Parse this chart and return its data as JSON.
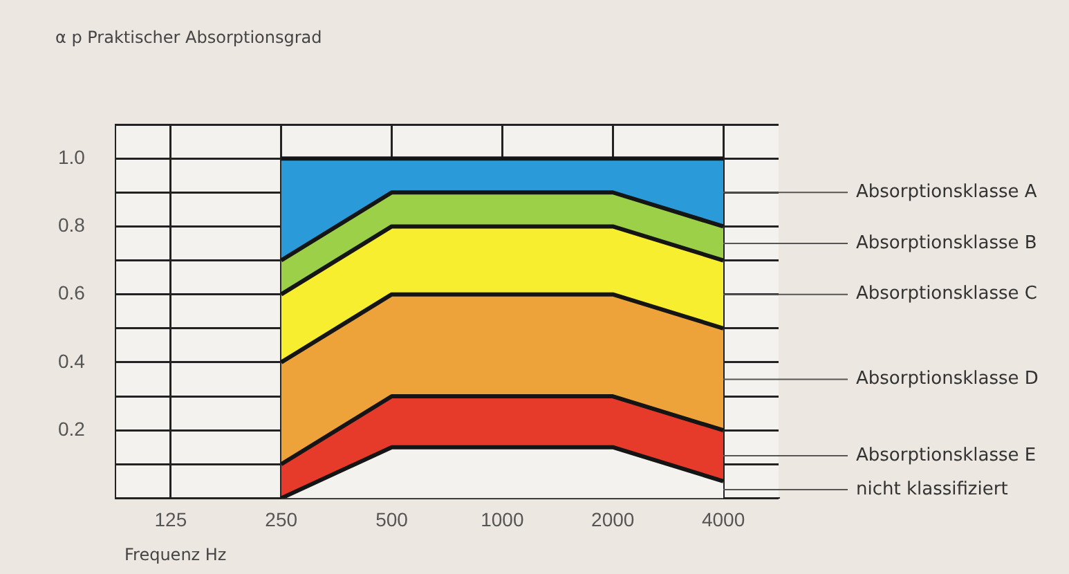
{
  "chart_data": {
    "type": "area",
    "stacked": true,
    "ylabel": "α p Praktischer Absorptionsgrad",
    "xlabel": "Frequenz Hz",
    "categories": [
      "125",
      "250",
      "500",
      "1000",
      "2000",
      "4000"
    ],
    "ylim": [
      0,
      1.1
    ],
    "yticks": [
      {
        "value": 0,
        "label": null
      },
      {
        "value": 0.1,
        "label": null
      },
      {
        "value": 0.2,
        "label": "0.2"
      },
      {
        "value": 0.3,
        "label": null
      },
      {
        "value": 0.4,
        "label": "0.4"
      },
      {
        "value": 0.5,
        "label": null
      },
      {
        "value": 0.6,
        "label": "0.6"
      },
      {
        "value": 0.7,
        "label": null
      },
      {
        "value": 0.8,
        "label": "0.8"
      },
      {
        "value": 0.9,
        "label": null
      },
      {
        "value": 1.0,
        "label": "1.0"
      },
      {
        "value": 1.1,
        "label": null
      }
    ],
    "grid": true,
    "legend": false,
    "series": [
      {
        "name": "nicht klassifiziert",
        "color": "#f4f2ee",
        "values": [
          null,
          0,
          0.15,
          0.15,
          0.15,
          0.05
        ]
      },
      {
        "name": "Absorptionsklasse E",
        "color": "#e63a2a",
        "values": [
          null,
          0.1,
          0.15,
          0.15,
          0.15,
          0.15
        ]
      },
      {
        "name": "Absorptionsklasse D",
        "color": "#eea23a",
        "values": [
          null,
          0.3,
          0.3,
          0.3,
          0.3,
          0.3
        ]
      },
      {
        "name": "Absorptionsklasse C",
        "color": "#f6ee2e",
        "values": [
          null,
          0.2,
          0.2,
          0.2,
          0.2,
          0.2
        ]
      },
      {
        "name": "Absorptionsklasse B",
        "color": "#9cd048",
        "values": [
          null,
          0.1,
          0.1,
          0.1,
          0.1,
          0.1
        ]
      },
      {
        "name": "Absorptionsklasse A",
        "color": "#2a9ad8",
        "values": [
          null,
          0.3,
          0.1,
          0.1,
          0.1,
          0.2
        ]
      }
    ]
  }
}
